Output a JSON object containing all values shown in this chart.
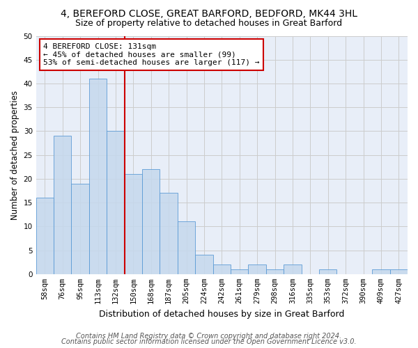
{
  "title1": "4, BEREFORD CLOSE, GREAT BARFORD, BEDFORD, MK44 3HL",
  "title2": "Size of property relative to detached houses in Great Barford",
  "xlabel": "Distribution of detached houses by size in Great Barford",
  "ylabel": "Number of detached properties",
  "categories": [
    "58sqm",
    "76sqm",
    "95sqm",
    "113sqm",
    "132sqm",
    "150sqm",
    "168sqm",
    "187sqm",
    "205sqm",
    "224sqm",
    "242sqm",
    "261sqm",
    "279sqm",
    "298sqm",
    "316sqm",
    "335sqm",
    "353sqm",
    "372sqm",
    "390sqm",
    "409sqm",
    "427sqm"
  ],
  "values": [
    16,
    29,
    19,
    41,
    30,
    21,
    22,
    17,
    11,
    4,
    2,
    1,
    2,
    1,
    2,
    0,
    1,
    0,
    0,
    1,
    1
  ],
  "bar_color": "#c5d8ed",
  "bar_edge_color": "#5b9bd5",
  "bar_alpha": 0.85,
  "vline_index": 4,
  "vline_color": "#cc0000",
  "annotation_text": "4 BEREFORD CLOSE: 131sqm\n← 45% of detached houses are smaller (99)\n53% of semi-detached houses are larger (117) →",
  "annotation_box_color": "white",
  "annotation_box_edge": "#cc0000",
  "ylim": [
    0,
    50
  ],
  "yticks": [
    0,
    5,
    10,
    15,
    20,
    25,
    30,
    35,
    40,
    45,
    50
  ],
  "grid_color": "#cccccc",
  "bg_color": "#e8eef8",
  "footer1": "Contains HM Land Registry data © Crown copyright and database right 2024.",
  "footer2": "Contains public sector information licensed under the Open Government Licence v3.0.",
  "title1_fontsize": 10,
  "title2_fontsize": 9,
  "xlabel_fontsize": 9,
  "ylabel_fontsize": 8.5,
  "tick_fontsize": 7.5,
  "annotation_fontsize": 8,
  "footer_fontsize": 7
}
